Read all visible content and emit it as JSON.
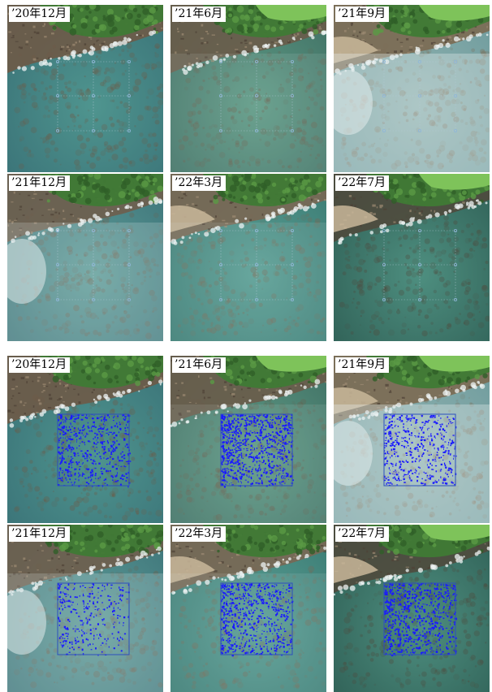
{
  "figure": {
    "rows": [
      {
        "mode": "grid",
        "panels": [
          {
            "label": "’20年12月",
            "scene": "d20_12"
          },
          {
            "label": "’21年6月",
            "scene": "d21_06"
          },
          {
            "label": "’21年9月",
            "scene": "d21_09"
          }
        ]
      },
      {
        "mode": "grid",
        "panels": [
          {
            "label": "’21年12月",
            "scene": "d21_12"
          },
          {
            "label": "’22年3月",
            "scene": "d22_03"
          },
          {
            "label": "’22年7月",
            "scene": "d22_07"
          }
        ]
      },
      {
        "mode": "detection",
        "panels": [
          {
            "label": "’20年12月",
            "scene": "d20_12",
            "coverage": 0.38
          },
          {
            "label": "’21年6月",
            "scene": "d21_06",
            "coverage": 0.62
          },
          {
            "label": "’21年9月",
            "scene": "d21_09",
            "coverage": 0.33
          }
        ]
      },
      {
        "mode": "detection",
        "panels": [
          {
            "label": "’21年12月",
            "scene": "d21_12",
            "coverage": 0.2
          },
          {
            "label": "’22年3月",
            "scene": "d22_03",
            "coverage": 0.45
          },
          {
            "label": "’22年7月",
            "scene": "d22_07",
            "coverage": 0.5
          }
        ]
      }
    ],
    "colors": {
      "detection": "#1a1aff",
      "survey_box": "#2d4fbd",
      "grid_dots": "#8fb6d9",
      "water_shallow": "#5fa6a0",
      "water_deep": "#3e7f86",
      "rock": "#7b6a55",
      "vegetation": "#3f7a35",
      "grass": "#7ec35a",
      "foam": "#e9eef0"
    }
  }
}
